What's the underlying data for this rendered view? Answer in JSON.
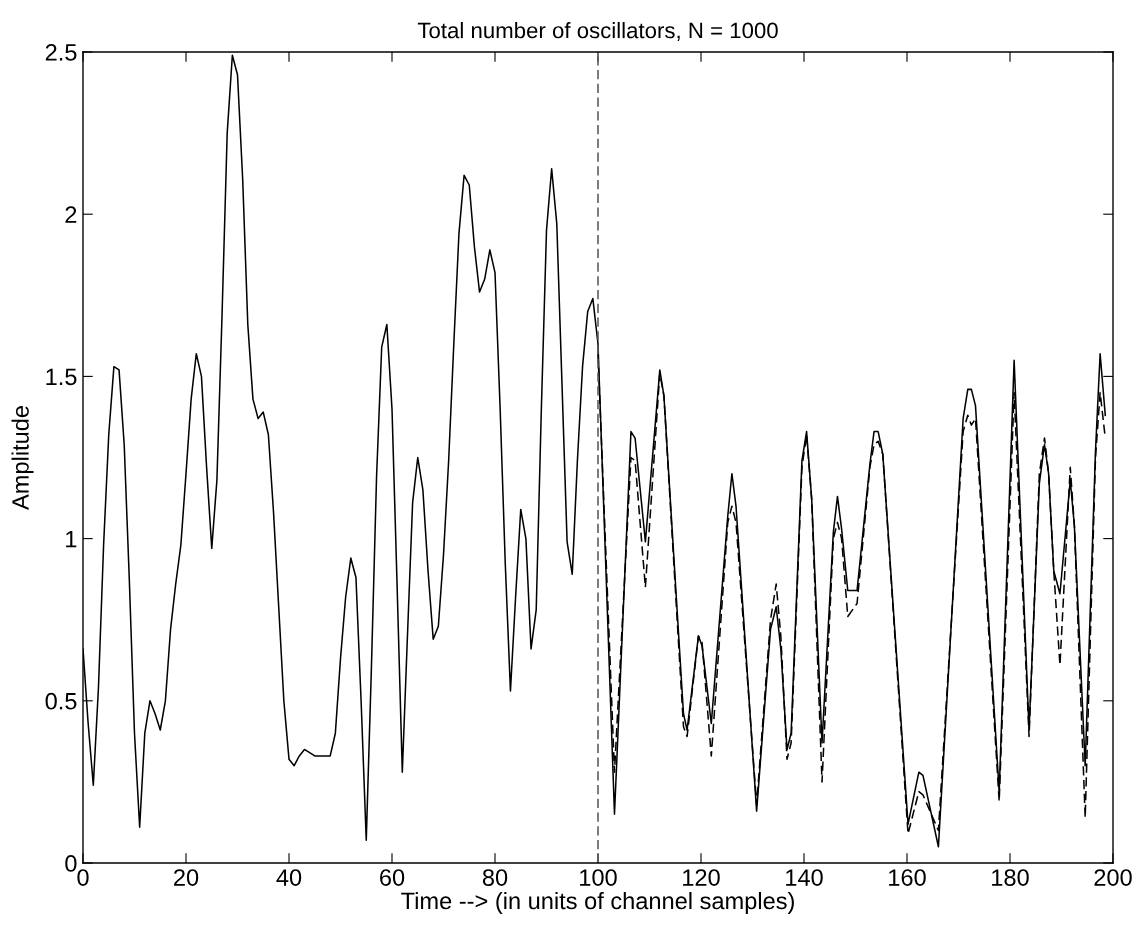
{
  "chart_data": {
    "type": "line",
    "title": "Total number of oscillators, N = 1000",
    "xlabel": "Time --> (in units of channel samples)",
    "ylabel": "Amplitude",
    "xlim": [
      0,
      200
    ],
    "ylim": [
      0,
      2.5
    ],
    "xticks": [
      0,
      20,
      40,
      60,
      80,
      100,
      120,
      140,
      160,
      180,
      200
    ],
    "yticks": [
      0,
      0.5,
      1,
      1.5,
      2,
      2.5
    ],
    "grid": false,
    "legend": false,
    "marker": "none",
    "ref_lines": [
      {
        "axis": "x",
        "value": 100,
        "color": "#555555",
        "line_style": "dashed"
      }
    ],
    "series": [
      {
        "color": "#000000",
        "line_style": "solid",
        "x": [
          0,
          1,
          2,
          3,
          4,
          5,
          6,
          7,
          8,
          9,
          10,
          11,
          12,
          13,
          14,
          15,
          16,
          17,
          18,
          19,
          20,
          21,
          22,
          23,
          24,
          25,
          26,
          27,
          28,
          29,
          30,
          31,
          32,
          33,
          34,
          35,
          36,
          37,
          38,
          39,
          40,
          41,
          42,
          43,
          44,
          45,
          46,
          47,
          48,
          49,
          50,
          51,
          52,
          53,
          54,
          55,
          56,
          57,
          58,
          59,
          60,
          61,
          62,
          63,
          64,
          65,
          66,
          67,
          68,
          69,
          70,
          71,
          72,
          73,
          74,
          75,
          76,
          77,
          78,
          79,
          80,
          81,
          82,
          83,
          84,
          85,
          86,
          87,
          88,
          89,
          90,
          91,
          92,
          93,
          94,
          95,
          96,
          97,
          98,
          99,
          100,
          103.2,
          106.4,
          107.2,
          109.2,
          112,
          112.8,
          116.6,
          117.3,
          119.5,
          120.2,
          122,
          125.2,
          126,
          126.8,
          130.8,
          133.5,
          134.6,
          135.5,
          136.7,
          137.5,
          139.6,
          140.5,
          141.5,
          143.5,
          145.7,
          146.5,
          147.3,
          148.5,
          150.3,
          152.8,
          153.6,
          154.4,
          155.3,
          160.2,
          162.3,
          163.1,
          166.1,
          170.9,
          171.8,
          172.5,
          173.3,
          177.9,
          180.8,
          183.7,
          185.7,
          186.7,
          187.5,
          188.5,
          189.7,
          191.7,
          192.5,
          194.6,
          196.6,
          197.5,
          198.5
        ],
        "values": [
          0.66,
          0.43,
          0.24,
          0.54,
          0.98,
          1.32,
          1.53,
          1.52,
          1.29,
          0.87,
          0.4,
          0.11,
          0.4,
          0.5,
          0.46,
          0.41,
          0.5,
          0.72,
          0.86,
          0.98,
          1.2,
          1.43,
          1.57,
          1.5,
          1.22,
          0.97,
          1.18,
          1.69,
          2.25,
          2.49,
          2.43,
          2.11,
          1.66,
          1.43,
          1.37,
          1.39,
          1.32,
          1.08,
          0.79,
          0.5,
          0.32,
          0.3,
          0.33,
          0.35,
          0.34,
          0.33,
          0.33,
          0.33,
          0.33,
          0.4,
          0.63,
          0.82,
          0.94,
          0.88,
          0.5,
          0.07,
          0.6,
          1.19,
          1.59,
          1.66,
          1.4,
          0.85,
          0.28,
          0.7,
          1.11,
          1.25,
          1.15,
          0.9,
          0.69,
          0.73,
          0.95,
          1.24,
          1.6,
          1.94,
          2.12,
          2.09,
          1.9,
          1.76,
          1.8,
          1.89,
          1.82,
          1.4,
          0.92,
          0.53,
          0.82,
          1.09,
          1.0,
          0.66,
          0.78,
          1.4,
          1.95,
          2.14,
          1.97,
          1.48,
          0.99,
          0.89,
          1.24,
          1.53,
          1.7,
          1.74,
          1.6,
          0.15,
          1.33,
          1.31,
          0.99,
          1.52,
          1.44,
          0.46,
          0.41,
          0.7,
          0.67,
          0.43,
          1.07,
          1.2,
          1.1,
          0.16,
          0.72,
          0.79,
          0.66,
          0.35,
          0.4,
          1.24,
          1.33,
          1.12,
          0.37,
          1.02,
          1.13,
          1.03,
          0.84,
          0.84,
          1.23,
          1.33,
          1.33,
          1.26,
          0.12,
          0.28,
          0.27,
          0.05,
          1.37,
          1.46,
          1.46,
          1.41,
          0.22,
          1.55,
          0.41,
          1.17,
          1.29,
          1.2,
          0.9,
          0.83,
          1.18,
          1.04,
          0.3,
          1.27,
          1.57,
          1.38
        ]
      },
      {
        "color": "#000000",
        "line_style": "dashed",
        "x": [
          100,
          103.2,
          106.4,
          107.2,
          109.2,
          112,
          112.8,
          116.6,
          117.3,
          119.5,
          120.2,
          122,
          125.2,
          126,
          126.8,
          130.8,
          133.5,
          134.6,
          135.5,
          136.7,
          137.5,
          139.6,
          140.5,
          141.5,
          143.5,
          145.7,
          146.5,
          147.3,
          148.5,
          150.3,
          152.8,
          153.6,
          154.4,
          155.3,
          160.2,
          162.3,
          163.1,
          166.1,
          170.9,
          171.8,
          172.5,
          173.3,
          177.9,
          180.8,
          183.7,
          185.7,
          186.7,
          187.5,
          188.5,
          189.7,
          191.7,
          192.5,
          194.6,
          196.6,
          197.5,
          198.5
        ],
        "values": [
          1.57,
          0.28,
          1.25,
          1.24,
          0.85,
          1.51,
          1.44,
          0.42,
          0.39,
          0.7,
          0.68,
          0.33,
          1.05,
          1.1,
          1.05,
          0.18,
          0.75,
          0.86,
          0.7,
          0.32,
          0.37,
          1.22,
          1.32,
          1.12,
          0.25,
          1.0,
          1.05,
          1.0,
          0.76,
          0.8,
          1.22,
          1.29,
          1.3,
          1.26,
          0.09,
          0.22,
          0.21,
          0.1,
          1.33,
          1.38,
          1.35,
          1.37,
          0.19,
          1.45,
          0.39,
          1.2,
          1.31,
          1.2,
          0.9,
          0.61,
          1.22,
          1.04,
          0.14,
          1.25,
          1.45,
          1.31
        ]
      }
    ]
  }
}
